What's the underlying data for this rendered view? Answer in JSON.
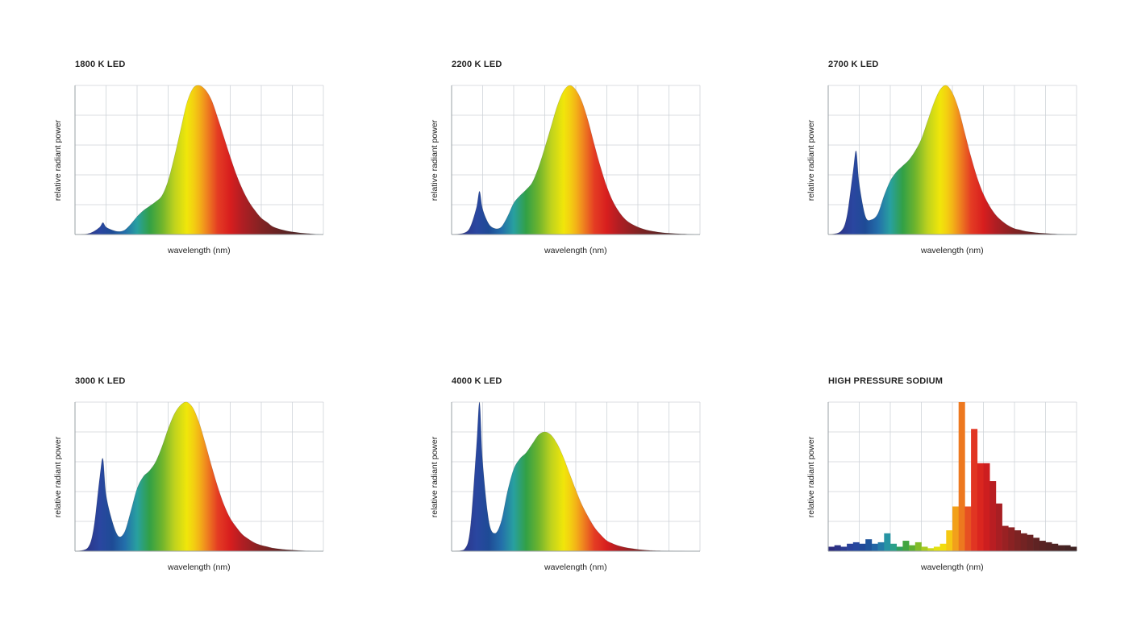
{
  "chart_data": [
    {
      "type": "area",
      "title": "1800 K LED",
      "xlabel": "wavelength (nm)",
      "ylabel": "relative radiant power",
      "grid": true,
      "x": [
        380,
        400,
        410,
        420,
        425,
        430,
        440,
        450,
        460,
        470,
        480,
        490,
        500,
        510,
        520,
        530,
        540,
        550,
        560,
        570,
        580,
        590,
        600,
        610,
        620,
        630,
        640,
        650,
        660,
        670,
        680,
        690,
        700,
        720,
        740,
        760,
        780
      ],
      "y": [
        0,
        0.005,
        0.02,
        0.05,
        0.08,
        0.05,
        0.03,
        0.02,
        0.03,
        0.07,
        0.12,
        0.16,
        0.19,
        0.22,
        0.26,
        0.36,
        0.52,
        0.7,
        0.88,
        0.98,
        1.0,
        0.97,
        0.9,
        0.78,
        0.65,
        0.52,
        0.4,
        0.3,
        0.22,
        0.16,
        0.11,
        0.08,
        0.05,
        0.025,
        0.012,
        0.005,
        0
      ]
    },
    {
      "type": "area",
      "title": "2200 K LED",
      "xlabel": "wavelength (nm)",
      "ylabel": "relative radiant power",
      "grid": true,
      "x": [
        380,
        400,
        410,
        420,
        425,
        430,
        440,
        450,
        460,
        470,
        480,
        490,
        500,
        510,
        520,
        530,
        540,
        550,
        560,
        570,
        580,
        590,
        600,
        610,
        620,
        630,
        640,
        650,
        660,
        670,
        680,
        690,
        700,
        720,
        740,
        760,
        780
      ],
      "y": [
        0,
        0.01,
        0.05,
        0.18,
        0.29,
        0.17,
        0.07,
        0.04,
        0.05,
        0.12,
        0.21,
        0.26,
        0.3,
        0.35,
        0.45,
        0.58,
        0.72,
        0.86,
        0.96,
        1.0,
        0.97,
        0.89,
        0.76,
        0.6,
        0.45,
        0.32,
        0.22,
        0.15,
        0.1,
        0.07,
        0.05,
        0.035,
        0.025,
        0.012,
        0.006,
        0.003,
        0
      ]
    },
    {
      "type": "area",
      "title": "2700 K LED",
      "xlabel": "wavelength (nm)",
      "ylabel": "relative radiant power",
      "grid": true,
      "x": [
        380,
        400,
        410,
        420,
        425,
        430,
        440,
        450,
        460,
        470,
        480,
        490,
        500,
        510,
        520,
        530,
        540,
        550,
        560,
        570,
        580,
        590,
        600,
        610,
        620,
        630,
        640,
        650,
        660,
        670,
        680,
        690,
        700,
        720,
        740,
        760,
        780
      ],
      "y": [
        0,
        0.02,
        0.12,
        0.42,
        0.56,
        0.34,
        0.12,
        0.1,
        0.14,
        0.26,
        0.36,
        0.42,
        0.46,
        0.5,
        0.56,
        0.64,
        0.76,
        0.88,
        0.97,
        1.0,
        0.95,
        0.84,
        0.68,
        0.52,
        0.38,
        0.27,
        0.19,
        0.13,
        0.09,
        0.06,
        0.04,
        0.03,
        0.02,
        0.01,
        0.005,
        0.002,
        0
      ]
    },
    {
      "type": "area",
      "title": "3000 K LED",
      "xlabel": "wavelength (nm)",
      "ylabel": "relative radiant power",
      "grid": true,
      "x": [
        380,
        400,
        410,
        420,
        425,
        430,
        440,
        450,
        460,
        470,
        480,
        490,
        500,
        510,
        520,
        530,
        540,
        550,
        560,
        570,
        580,
        590,
        600,
        610,
        620,
        630,
        640,
        650,
        660,
        670,
        680,
        690,
        700,
        720,
        740,
        760,
        780
      ],
      "y": [
        0,
        0.02,
        0.15,
        0.5,
        0.62,
        0.38,
        0.2,
        0.1,
        0.13,
        0.27,
        0.42,
        0.5,
        0.54,
        0.6,
        0.7,
        0.82,
        0.92,
        0.98,
        1.0,
        0.96,
        0.86,
        0.72,
        0.57,
        0.43,
        0.31,
        0.22,
        0.16,
        0.11,
        0.08,
        0.055,
        0.04,
        0.03,
        0.02,
        0.01,
        0.005,
        0.002,
        0
      ]
    },
    {
      "type": "area",
      "title": "4000 K LED",
      "xlabel": "wavelength (nm)",
      "ylabel": "relative radiant power",
      "grid": true,
      "x": [
        380,
        400,
        410,
        420,
        425,
        430,
        440,
        450,
        460,
        470,
        480,
        490,
        500,
        510,
        520,
        530,
        540,
        550,
        560,
        570,
        580,
        590,
        600,
        610,
        620,
        630,
        640,
        650,
        660,
        670,
        680,
        690,
        700,
        720,
        740,
        760,
        780
      ],
      "y": [
        0,
        0.01,
        0.15,
        0.7,
        1.0,
        0.6,
        0.2,
        0.12,
        0.2,
        0.4,
        0.55,
        0.62,
        0.66,
        0.72,
        0.78,
        0.8,
        0.78,
        0.72,
        0.63,
        0.52,
        0.41,
        0.31,
        0.23,
        0.16,
        0.11,
        0.07,
        0.05,
        0.035,
        0.025,
        0.018,
        0.012,
        0.008,
        0.005,
        0.003,
        0.002,
        0.001,
        0
      ]
    },
    {
      "type": "bar",
      "title": "HIGH PRESSURE SODIUM",
      "xlabel": "wavelength (nm)",
      "ylabel": "relative radiant power",
      "grid": true,
      "bin_start": 380,
      "bin_width": 10,
      "values": [
        0.03,
        0.04,
        0.03,
        0.05,
        0.06,
        0.05,
        0.08,
        0.05,
        0.06,
        0.12,
        0.05,
        0.03,
        0.07,
        0.04,
        0.06,
        0.03,
        0.02,
        0.03,
        0.05,
        0.14,
        0.3,
        1.0,
        0.3,
        0.82,
        0.59,
        0.59,
        0.47,
        0.32,
        0.17,
        0.16,
        0.14,
        0.12,
        0.11,
        0.09,
        0.07,
        0.06,
        0.05,
        0.04,
        0.04,
        0.03
      ]
    }
  ]
}
